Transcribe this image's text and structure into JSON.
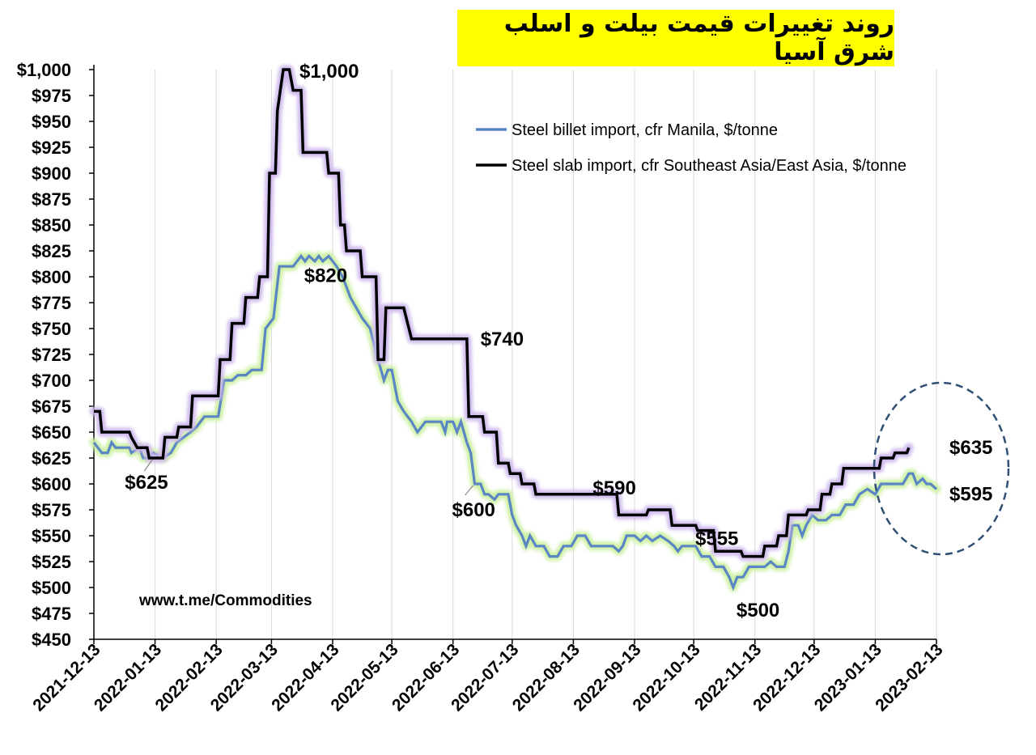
{
  "chart_data": {
    "type": "line",
    "title": "روند تغییرات قیمت بیلت و اسلب شرق آسیا",
    "ylim": [
      450,
      1000
    ],
    "y_ticks": [
      "$1,000",
      "$975",
      "$950",
      "$925",
      "$900",
      "$875",
      "$850",
      "$825",
      "$800",
      "$775",
      "$750",
      "$725",
      "$700",
      "$675",
      "$650",
      "$625",
      "$600",
      "$575",
      "$550",
      "$525",
      "$500",
      "$475",
      "$450"
    ],
    "x_ticks": [
      "2021-12-13",
      "2022-01-13",
      "2022-02-13",
      "2022-03-13",
      "2022-04-13",
      "2022-05-13",
      "2022-06-13",
      "2022-07-13",
      "2022-08-13",
      "2022-09-13",
      "2022-10-13",
      "2022-11-13",
      "2022-12-13",
      "2023-01-13",
      "2023-02-13"
    ],
    "grid": "vertical",
    "legend_position": "top-right",
    "series": [
      {
        "name": "Steel billet import, cfr Manila, $/tonne",
        "color": "#5b86c5",
        "glow": "#ccf0a0",
        "points": [
          [
            "2021-12-13",
            640
          ],
          [
            "2021-12-15",
            635
          ],
          [
            "2021-12-17",
            630
          ],
          [
            "2021-12-20",
            630
          ],
          [
            "2021-12-22",
            640
          ],
          [
            "2021-12-24",
            635
          ],
          [
            "2021-12-31",
            635
          ],
          [
            "2022-01-01",
            630
          ],
          [
            "2022-01-05",
            635
          ],
          [
            "2022-01-07",
            625
          ],
          [
            "2022-01-10",
            625
          ],
          [
            "2022-01-12",
            630
          ],
          [
            "2022-01-17",
            625
          ],
          [
            "2022-01-21",
            630
          ],
          [
            "2022-01-24",
            640
          ],
          [
            "2022-01-31",
            650
          ],
          [
            "2022-02-03",
            655
          ],
          [
            "2022-02-07",
            665
          ],
          [
            "2022-02-10",
            665
          ],
          [
            "2022-02-14",
            665
          ],
          [
            "2022-02-17",
            700
          ],
          [
            "2022-02-21",
            700
          ],
          [
            "2022-02-24",
            705
          ],
          [
            "2022-02-28",
            705
          ],
          [
            "2022-03-03",
            710
          ],
          [
            "2022-03-08",
            710
          ],
          [
            "2022-03-10",
            750
          ],
          [
            "2022-03-14",
            760
          ],
          [
            "2022-03-17",
            810
          ],
          [
            "2022-03-21",
            810
          ],
          [
            "2022-03-24",
            810
          ],
          [
            "2022-03-28",
            820
          ],
          [
            "2022-03-30",
            815
          ],
          [
            "2022-04-01",
            820
          ],
          [
            "2022-04-04",
            815
          ],
          [
            "2022-04-06",
            820
          ],
          [
            "2022-04-08",
            815
          ],
          [
            "2022-04-11",
            820
          ],
          [
            "2022-04-13",
            815
          ],
          [
            "2022-04-15",
            810
          ],
          [
            "2022-04-18",
            800
          ],
          [
            "2022-04-20",
            790
          ],
          [
            "2022-04-22",
            780
          ],
          [
            "2022-04-25",
            770
          ],
          [
            "2022-04-28",
            760
          ],
          [
            "2022-05-02",
            750
          ],
          [
            "2022-05-04",
            735
          ],
          [
            "2022-05-06",
            720
          ],
          [
            "2022-05-09",
            700
          ],
          [
            "2022-05-11",
            710
          ],
          [
            "2022-05-13",
            710
          ],
          [
            "2022-05-16",
            680
          ],
          [
            "2022-05-19",
            670
          ],
          [
            "2022-05-23",
            660
          ],
          [
            "2022-05-26",
            650
          ],
          [
            "2022-05-30",
            660
          ],
          [
            "2022-06-03",
            660
          ],
          [
            "2022-06-07",
            660
          ],
          [
            "2022-06-09",
            650
          ],
          [
            "2022-06-10",
            660
          ],
          [
            "2022-06-13",
            660
          ],
          [
            "2022-06-15",
            650
          ],
          [
            "2022-06-17",
            660
          ],
          [
            "2022-06-20",
            640
          ],
          [
            "2022-06-22",
            630
          ],
          [
            "2022-06-24",
            600
          ],
          [
            "2022-06-27",
            600
          ],
          [
            "2022-06-29",
            590
          ],
          [
            "2022-07-01",
            590
          ],
          [
            "2022-07-04",
            585
          ],
          [
            "2022-07-06",
            590
          ],
          [
            "2022-07-11",
            590
          ],
          [
            "2022-07-13",
            570
          ],
          [
            "2022-07-15",
            560
          ],
          [
            "2022-07-18",
            550
          ],
          [
            "2022-07-20",
            540
          ],
          [
            "2022-07-22",
            550
          ],
          [
            "2022-07-25",
            540
          ],
          [
            "2022-07-29",
            540
          ],
          [
            "2022-08-01",
            530
          ],
          [
            "2022-08-05",
            530
          ],
          [
            "2022-08-08",
            540
          ],
          [
            "2022-08-12",
            540
          ],
          [
            "2022-08-15",
            550
          ],
          [
            "2022-08-19",
            550
          ],
          [
            "2022-08-22",
            540
          ],
          [
            "2022-08-26",
            540
          ],
          [
            "2022-08-29",
            540
          ],
          [
            "2022-09-02",
            540
          ],
          [
            "2022-09-05",
            535
          ],
          [
            "2022-09-07",
            540
          ],
          [
            "2022-09-09",
            550
          ],
          [
            "2022-09-13",
            550
          ],
          [
            "2022-09-16",
            545
          ],
          [
            "2022-09-19",
            550
          ],
          [
            "2022-09-22",
            545
          ],
          [
            "2022-09-26",
            550
          ],
          [
            "2022-09-30",
            545
          ],
          [
            "2022-10-03",
            540
          ],
          [
            "2022-10-05",
            535
          ],
          [
            "2022-10-07",
            540
          ],
          [
            "2022-10-14",
            540
          ],
          [
            "2022-10-17",
            530
          ],
          [
            "2022-10-21",
            530
          ],
          [
            "2022-10-24",
            520
          ],
          [
            "2022-10-28",
            520
          ],
          [
            "2022-10-31",
            510
          ],
          [
            "2022-11-02",
            500
          ],
          [
            "2022-11-04",
            510
          ],
          [
            "2022-11-07",
            510
          ],
          [
            "2022-11-10",
            520
          ],
          [
            "2022-11-14",
            520
          ],
          [
            "2022-11-18",
            520
          ],
          [
            "2022-11-21",
            525
          ],
          [
            "2022-11-24",
            520
          ],
          [
            "2022-11-28",
            520
          ],
          [
            "2022-11-30",
            535
          ],
          [
            "2022-12-02",
            560
          ],
          [
            "2022-12-05",
            560
          ],
          [
            "2022-12-07",
            550
          ],
          [
            "2022-12-09",
            560
          ],
          [
            "2022-12-12",
            570
          ],
          [
            "2022-12-15",
            565
          ],
          [
            "2022-12-19",
            565
          ],
          [
            "2022-12-22",
            570
          ],
          [
            "2022-12-26",
            570
          ],
          [
            "2022-12-29",
            580
          ],
          [
            "2023-01-02",
            580
          ],
          [
            "2023-01-05",
            590
          ],
          [
            "2023-01-09",
            595
          ],
          [
            "2023-01-13",
            590
          ],
          [
            "2023-01-16",
            600
          ],
          [
            "2023-01-20",
            600
          ],
          [
            "2023-01-23",
            600
          ],
          [
            "2023-01-27",
            600
          ],
          [
            "2023-01-30",
            610
          ],
          [
            "2023-02-01",
            610
          ],
          [
            "2023-02-03",
            600
          ],
          [
            "2023-02-06",
            605
          ],
          [
            "2023-02-08",
            600
          ],
          [
            "2023-02-10",
            600
          ],
          [
            "2023-02-13",
            595
          ]
        ]
      },
      {
        "name": "Steel slab import, cfr Southeast Asia/East Asia, $/tonne",
        "color": "#000000",
        "glow": "#cdb6ec",
        "points": [
          [
            "2021-12-13",
            670
          ],
          [
            "2021-12-16",
            670
          ],
          [
            "2021-12-17",
            650
          ],
          [
            "2021-12-24",
            650
          ],
          [
            "2021-12-31",
            650
          ],
          [
            "2022-01-01",
            645
          ],
          [
            "2022-01-04",
            635
          ],
          [
            "2022-01-09",
            635
          ],
          [
            "2022-01-10",
            625
          ],
          [
            "2022-01-17",
            625
          ],
          [
            "2022-01-18",
            645
          ],
          [
            "2022-01-24",
            645
          ],
          [
            "2022-01-25",
            655
          ],
          [
            "2022-01-31",
            655
          ],
          [
            "2022-02-01",
            685
          ],
          [
            "2022-02-14",
            685
          ],
          [
            "2022-02-15",
            720
          ],
          [
            "2022-02-20",
            720
          ],
          [
            "2022-02-21",
            755
          ],
          [
            "2022-02-27",
            755
          ],
          [
            "2022-02-28",
            780
          ],
          [
            "2022-03-06",
            780
          ],
          [
            "2022-03-07",
            800
          ],
          [
            "2022-03-11",
            800
          ],
          [
            "2022-03-12",
            900
          ],
          [
            "2022-03-15",
            900
          ],
          [
            "2022-03-16",
            960
          ],
          [
            "2022-03-19",
            1000
          ],
          [
            "2022-03-22",
            1000
          ],
          [
            "2022-03-24",
            980
          ],
          [
            "2022-03-28",
            980
          ],
          [
            "2022-03-29",
            920
          ],
          [
            "2022-04-10",
            920
          ],
          [
            "2022-04-11",
            900
          ],
          [
            "2022-04-16",
            900
          ],
          [
            "2022-04-17",
            850
          ],
          [
            "2022-04-19",
            850
          ],
          [
            "2022-04-20",
            825
          ],
          [
            "2022-04-27",
            825
          ],
          [
            "2022-04-28",
            800
          ],
          [
            "2022-05-05",
            800
          ],
          [
            "2022-05-06",
            720
          ],
          [
            "2022-05-09",
            720
          ],
          [
            "2022-05-10",
            770
          ],
          [
            "2022-05-19",
            770
          ],
          [
            "2022-05-23",
            740
          ],
          [
            "2022-06-13",
            740
          ],
          [
            "2022-06-20",
            740
          ],
          [
            "2022-06-21",
            665
          ],
          [
            "2022-06-28",
            665
          ],
          [
            "2022-06-29",
            650
          ],
          [
            "2022-07-05",
            650
          ],
          [
            "2022-07-06",
            620
          ],
          [
            "2022-07-11",
            620
          ],
          [
            "2022-07-12",
            610
          ],
          [
            "2022-07-17",
            610
          ],
          [
            "2022-07-18",
            600
          ],
          [
            "2022-07-24",
            600
          ],
          [
            "2022-07-25",
            590
          ],
          [
            "2022-08-13",
            590
          ],
          [
            "2022-09-04",
            590
          ],
          [
            "2022-09-05",
            570
          ],
          [
            "2022-09-19",
            570
          ],
          [
            "2022-09-20",
            575
          ],
          [
            "2022-10-01",
            575
          ],
          [
            "2022-10-02",
            560
          ],
          [
            "2022-10-14",
            560
          ],
          [
            "2022-10-15",
            555
          ],
          [
            "2022-10-23",
            555
          ],
          [
            "2022-10-24",
            535
          ],
          [
            "2022-11-06",
            535
          ],
          [
            "2022-11-07",
            530
          ],
          [
            "2022-11-17",
            530
          ],
          [
            "2022-11-18",
            540
          ],
          [
            "2022-11-24",
            540
          ],
          [
            "2022-11-25",
            550
          ],
          [
            "2022-11-29",
            550
          ],
          [
            "2022-11-30",
            570
          ],
          [
            "2022-12-09",
            570
          ],
          [
            "2022-12-10",
            575
          ],
          [
            "2022-12-16",
            575
          ],
          [
            "2022-12-17",
            590
          ],
          [
            "2022-12-21",
            590
          ],
          [
            "2022-12-22",
            600
          ],
          [
            "2022-12-27",
            600
          ],
          [
            "2022-12-28",
            615
          ],
          [
            "2023-01-15",
            615
          ],
          [
            "2023-01-16",
            625
          ],
          [
            "2023-01-22",
            625
          ],
          [
            "2023-01-23",
            630
          ],
          [
            "2023-01-29",
            630
          ],
          [
            "2023-01-30",
            635
          ]
        ]
      }
    ],
    "annotations": [
      {
        "text": "$1,000",
        "x": "2022-03-19",
        "y": 1000
      },
      {
        "text": "$820",
        "x": "2022-04-01",
        "y": 820
      },
      {
        "text": "$740",
        "x": "2022-06-13",
        "y": 740
      },
      {
        "text": "$625",
        "x": "2022-01-10",
        "y": 625
      },
      {
        "text": "$600",
        "x": "2022-06-24",
        "y": 600
      },
      {
        "text": "$590",
        "x": "2022-08-13",
        "y": 590
      },
      {
        "text": "$555",
        "x": "2022-10-15",
        "y": 555
      },
      {
        "text": "$500",
        "x": "2022-11-02",
        "y": 500
      },
      {
        "text": "$635",
        "x": "2023-02-13",
        "y": 635
      },
      {
        "text": "$595",
        "x": "2023-02-13",
        "y": 595
      }
    ]
  },
  "watermark": "www.t.me/Commodities",
  "highlight": "dashed ellipse around 2023-01 to 2023-02 endpoints"
}
